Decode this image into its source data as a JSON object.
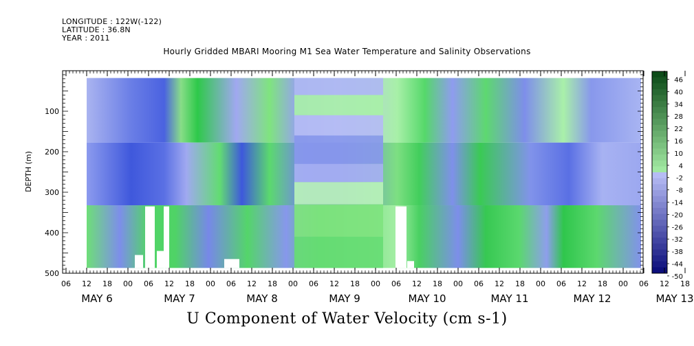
{
  "header": {
    "longitude": "LONGITUDE : 122W(-122)",
    "latitude": "LATITUDE : 36.8N",
    "year": "YEAR : 2011"
  },
  "chart_data": {
    "type": "heatmap",
    "title": "Hourly Gridded MBARI Mooring M1 Sea Water Temperature and Salinity Observations",
    "subtitle": "U Component of Water Velocity (cm s-1)",
    "ylabel": "DEPTH (m)",
    "xlabel": "",
    "ylim": [
      500,
      0
    ],
    "yticks": [
      100,
      200,
      300,
      400,
      500
    ],
    "x_hour_ticks": [
      "06",
      "12",
      "18",
      "00",
      "06",
      "12",
      "18",
      "00",
      "06",
      "12",
      "18",
      "00",
      "06",
      "12",
      "18",
      "00",
      "06",
      "12",
      "18",
      "00",
      "06",
      "12",
      "18",
      "00",
      "06",
      "12",
      "18",
      "00",
      "06",
      "12",
      "18",
      "00"
    ],
    "x_day_labels": [
      "MAY  6",
      "MAY  7",
      "MAY  8",
      "MAY  9",
      "MAY 10",
      "MAY 11",
      "MAY 12",
      "MAY 13"
    ],
    "colorbar_labels": [
      "46",
      "40",
      "34",
      "28",
      "22",
      "16",
      "10",
      "4",
      "-2",
      "-8",
      "-14",
      "-20",
      "-26",
      "-32",
      "-38",
      "-44",
      "-50"
    ],
    "colorbar_range": [
      -50,
      52
    ],
    "colors": {
      "negative_light": "#aab4f0",
      "negative_dark": "#1e2fb0",
      "positive_light": "#a8f0a8",
      "positive_dark": "#0a5a1a"
    },
    "bands": [
      {
        "start": "May 6 12:00",
        "end": "May 7 00:00",
        "character": "blue"
      },
      {
        "start": "May 7 00:00",
        "end": "May 7 12:00",
        "character": "mixed green/blue"
      },
      {
        "start": "May 7 12:00",
        "end": "May 8 12:00",
        "character": "mostly green"
      },
      {
        "start": "May 8 12:00",
        "end": "May 9 06:00",
        "character": "blue"
      },
      {
        "start": "May 9 06:00",
        "end": "May 10 00:00",
        "character": "uniform layers"
      },
      {
        "start": "May 10 00:00",
        "end": "May 11 00:00",
        "character": "mixed"
      },
      {
        "start": "May 11 00:00",
        "end": "May 12 00:00",
        "character": "mixed, deep green"
      },
      {
        "start": "May 12 00:00",
        "end": "May 13 06:00",
        "character": "blue upper / green lower"
      }
    ]
  }
}
